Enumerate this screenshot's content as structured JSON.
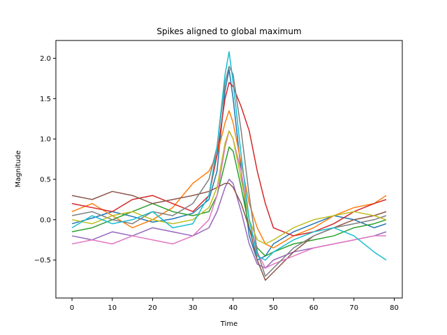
{
  "chart_data": {
    "type": "line",
    "title": "Spikes aligned to global maximum",
    "xlabel": "Time",
    "ylabel": "Magnitude",
    "xlim": [
      -4,
      82
    ],
    "ylim": [
      -0.97,
      2.22
    ],
    "x_ticks": [
      0,
      10,
      20,
      30,
      40,
      50,
      60,
      70,
      80
    ],
    "y_ticks": [
      -0.5,
      0.0,
      0.5,
      1.0,
      1.5,
      2.0
    ],
    "x_tick_labels": [
      "0",
      "10",
      "20",
      "30",
      "40",
      "50",
      "60",
      "70",
      "80"
    ],
    "y_tick_labels": [
      "−0.5",
      "0.0",
      "0.5",
      "1.0",
      "1.5",
      "2.0"
    ],
    "grid": false,
    "legend": "none",
    "colors": [
      "#1f77b4",
      "#ff7f0e",
      "#2ca02c",
      "#d62728",
      "#9467bd",
      "#8c564b",
      "#e377c2",
      "#7f7f7f",
      "#bcbd22",
      "#17becf"
    ],
    "x": [
      0,
      5,
      10,
      15,
      20,
      25,
      30,
      34,
      36,
      38,
      39,
      40,
      42,
      44,
      46,
      48,
      50,
      55,
      60,
      65,
      70,
      75,
      78
    ],
    "series": [
      {
        "values": [
          -0.05,
          0.02,
          0.1,
          0.04,
          -0.03,
          0.01,
          0.08,
          0.25,
          0.6,
          1.6,
          1.86,
          1.5,
          0.6,
          -0.2,
          -0.5,
          -0.45,
          -0.3,
          -0.15,
          -0.05,
          0.05,
          0.0,
          -0.1,
          -0.05
        ]
      },
      {
        "values": [
          0.1,
          0.2,
          0.05,
          -0.1,
          0.0,
          0.15,
          0.45,
          0.6,
          0.8,
          1.2,
          1.35,
          1.2,
          0.7,
          0.2,
          -0.1,
          -0.3,
          -0.35,
          -0.2,
          -0.1,
          0.05,
          0.15,
          0.2,
          0.3
        ]
      },
      {
        "values": [
          -0.15,
          -0.1,
          0.0,
          0.1,
          0.2,
          0.1,
          0.05,
          0.1,
          0.3,
          0.7,
          0.9,
          0.85,
          0.4,
          -0.1,
          -0.35,
          -0.45,
          -0.4,
          -0.3,
          -0.25,
          -0.2,
          -0.1,
          -0.05,
          0.0
        ]
      },
      {
        "values": [
          0.2,
          0.15,
          0.1,
          0.25,
          0.3,
          0.2,
          0.1,
          0.3,
          0.8,
          1.5,
          1.7,
          1.65,
          1.4,
          1.1,
          0.6,
          0.2,
          -0.1,
          -0.2,
          -0.15,
          -0.05,
          0.1,
          0.2,
          0.25
        ]
      },
      {
        "values": [
          -0.2,
          -0.25,
          -0.15,
          -0.2,
          -0.1,
          -0.15,
          -0.2,
          -0.1,
          0.1,
          0.4,
          0.5,
          0.45,
          0.1,
          -0.3,
          -0.55,
          -0.6,
          -0.5,
          -0.4,
          -0.35,
          -0.3,
          -0.25,
          -0.2,
          -0.15
        ]
      },
      {
        "values": [
          0.3,
          0.25,
          0.35,
          0.3,
          0.2,
          0.25,
          0.3,
          0.35,
          0.4,
          0.45,
          0.45,
          0.4,
          0.2,
          -0.1,
          -0.5,
          -0.75,
          -0.65,
          -0.4,
          -0.2,
          -0.1,
          0.0,
          0.05,
          0.1
        ]
      },
      {
        "values": [
          -0.3,
          -0.25,
          -0.3,
          -0.2,
          -0.25,
          -0.3,
          -0.2,
          0.0,
          0.3,
          0.9,
          1.1,
          1.0,
          0.6,
          0.0,
          -0.4,
          -0.6,
          -0.55,
          -0.45,
          -0.35,
          -0.3,
          -0.25,
          -0.2,
          -0.2
        ]
      },
      {
        "values": [
          0.05,
          0.1,
          0.0,
          -0.05,
          0.1,
          0.05,
          0.2,
          0.5,
          0.9,
          1.7,
          1.9,
          1.8,
          1.1,
          0.3,
          -0.4,
          -0.7,
          -0.6,
          -0.35,
          -0.2,
          -0.1,
          -0.05,
          0.0,
          0.05
        ]
      },
      {
        "values": [
          0.0,
          -0.05,
          0.05,
          0.1,
          0.0,
          -0.05,
          0.0,
          0.15,
          0.4,
          0.95,
          1.1,
          1.0,
          0.5,
          0.0,
          -0.25,
          -0.3,
          -0.25,
          -0.1,
          0.0,
          0.05,
          0.1,
          0.05,
          0.0
        ]
      },
      {
        "values": [
          -0.1,
          0.05,
          -0.05,
          0.0,
          0.1,
          -0.1,
          -0.05,
          0.3,
          0.9,
          1.8,
          2.08,
          1.7,
          0.8,
          0.0,
          -0.45,
          -0.5,
          -0.4,
          -0.25,
          -0.15,
          -0.1,
          -0.2,
          -0.4,
          -0.5
        ]
      }
    ]
  }
}
